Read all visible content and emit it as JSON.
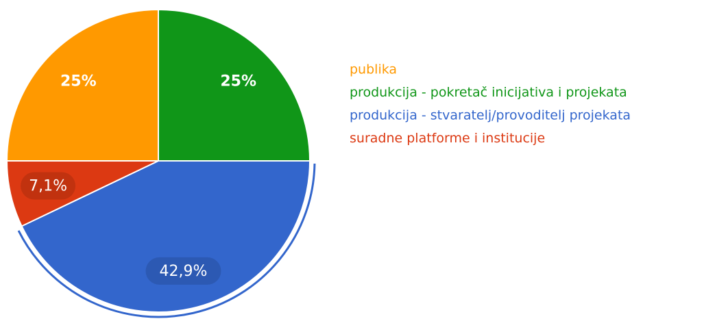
{
  "chart_data": {
    "type": "pie",
    "categories": [
      "publika",
      "produkcija - pokretač inicijativa i projekata",
      "produkcija - stvaratelj/provoditelj projekata",
      "suradne platforme i institucije"
    ],
    "values": [
      25,
      25,
      42.9,
      7.1
    ],
    "value_labels": [
      "25%",
      "25%",
      "42,9%",
      "7,1%"
    ],
    "colors": [
      "#ff9900",
      "#109618",
      "#3366cc",
      "#dc3912"
    ]
  }
}
